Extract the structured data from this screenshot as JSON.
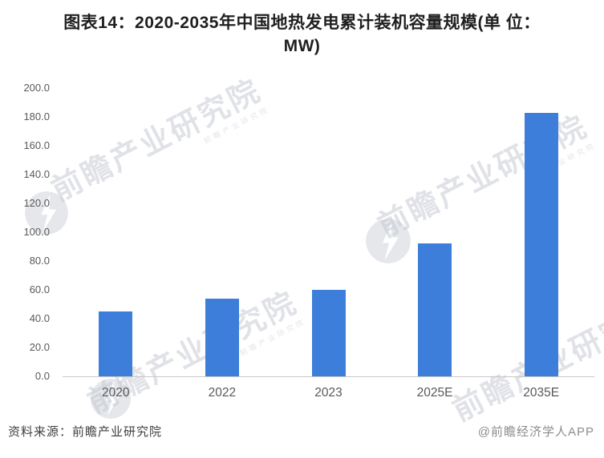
{
  "figure": {
    "title_line1": "图表14：2020-2035年中国地热发电累计装机容量规模(单 位：",
    "title_line2": "MW)"
  },
  "chart_data": {
    "type": "bar",
    "title": "图表14：2020-2035年中国地热发电累计装机容量规模(单位：MW)",
    "categories": [
      "2020",
      "2022",
      "2023",
      "2025E",
      "2035E"
    ],
    "values": [
      45,
      54,
      60,
      92,
      183
    ],
    "unit": "MW",
    "xlabel": "",
    "ylabel": "",
    "ylim": [
      0,
      200
    ],
    "ytick_step": 20,
    "yticks": [
      "200.0",
      "180.0",
      "160.0",
      "140.0",
      "120.0",
      "100.0",
      "80.0",
      "60.0",
      "40.0",
      "20.0",
      "0.0"
    ],
    "bar_color": "#3D7EDA",
    "axis_line_color": "#c9c9c9",
    "tick_label_color": "#595959",
    "grid": false,
    "legend": "none"
  },
  "footer": {
    "source": "资料来源：前瞻产业研究院",
    "credit": "@前瞻经济学人APP"
  },
  "watermark": {
    "text": "前瞻产业研究院",
    "color": "#c7ccd4"
  }
}
